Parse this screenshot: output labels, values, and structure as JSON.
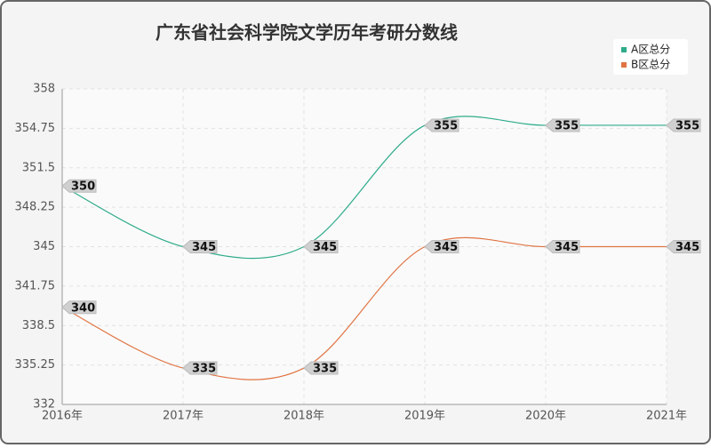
{
  "chart_data": {
    "type": "line",
    "title": "广东省社会科学院文学历年考研分数线",
    "categories": [
      "2016年",
      "2017年",
      "2018年",
      "2019年",
      "2020年",
      "2021年"
    ],
    "series": [
      {
        "name": "A区总分",
        "color": "#2eab8a",
        "values": [
          350,
          345,
          345,
          355,
          355,
          355
        ]
      },
      {
        "name": "B区总分",
        "color": "#e07443",
        "values": [
          340,
          335,
          335,
          345,
          345,
          345
        ]
      }
    ],
    "ylim": [
      332,
      358
    ],
    "yticks": [
      332,
      335.25,
      338.5,
      341.75,
      345,
      348.25,
      351.5,
      354.75,
      358
    ],
    "grid": true,
    "legend": "top-right"
  }
}
